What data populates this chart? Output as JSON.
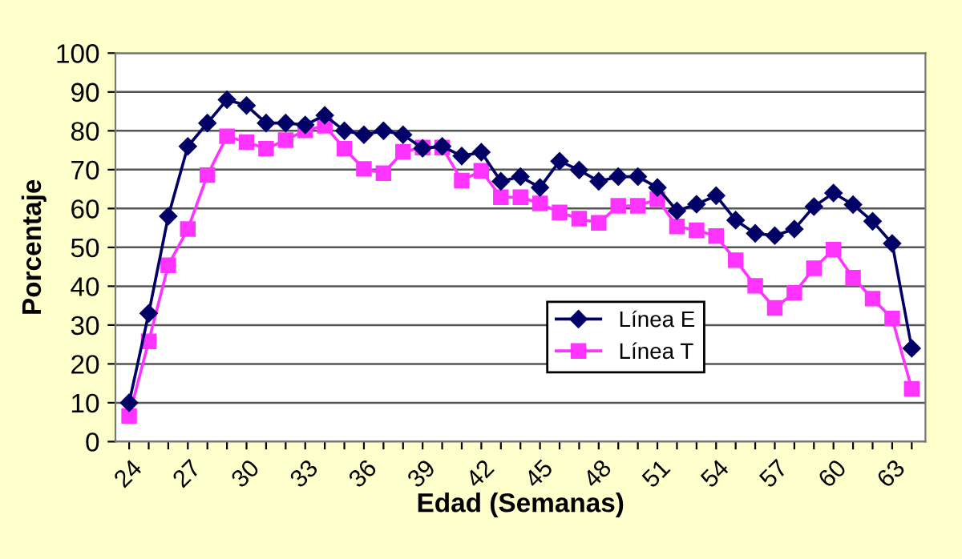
{
  "chart_data": {
    "type": "line",
    "xlabel": "Edad (Semanas)",
    "ylabel": "Porcentaje",
    "categories": [
      "24",
      null,
      null,
      "27",
      null,
      null,
      "30",
      null,
      null,
      "33",
      null,
      null,
      "36",
      null,
      null,
      "39",
      null,
      null,
      "42",
      null,
      null,
      "45",
      null,
      null,
      "48",
      null,
      null,
      "51",
      null,
      null,
      "54",
      null,
      null,
      "57",
      null,
      null,
      "60",
      null,
      null,
      "63",
      null
    ],
    "series": [
      {
        "name": "Línea E",
        "color": "#000066",
        "marker": "diamond",
        "values": [
          10,
          33,
          58,
          76,
          82,
          88,
          86.5,
          82,
          82,
          81.5,
          84,
          80,
          79,
          80,
          79,
          75.5,
          76,
          73.5,
          74.5,
          67,
          68.2,
          65.4,
          72.2,
          69.9,
          67,
          68.2,
          68.2,
          65.4,
          59.4,
          61.1,
          63.3,
          57,
          53.6,
          53,
          54.7,
          60.5,
          64,
          61,
          56.7,
          51,
          24
        ]
      },
      {
        "name": "Línea T",
        "color": "#ff33ff",
        "marker": "square",
        "values": [
          6.6,
          25.8,
          45.4,
          54.7,
          68.6,
          78.6,
          77.1,
          75.4,
          77.6,
          80.1,
          81.3,
          75.4,
          70.2,
          69.1,
          74.6,
          75.7,
          75.7,
          67.2,
          69.7,
          62.9,
          62.9,
          61.3,
          59,
          57.4,
          56.3,
          60.7,
          60.7,
          62.4,
          55.4,
          54.4,
          52.9,
          46.7,
          40.1,
          34.4,
          38.3,
          44.6,
          49.4,
          42.2,
          36.8,
          31.7,
          13.6
        ]
      }
    ],
    "ylim": [
      0,
      100
    ],
    "yticks": [
      0,
      10,
      20,
      30,
      40,
      50,
      60,
      70,
      80,
      90,
      100
    ],
    "grid": "y",
    "legend": "bottom",
    "line_style": "solid"
  }
}
